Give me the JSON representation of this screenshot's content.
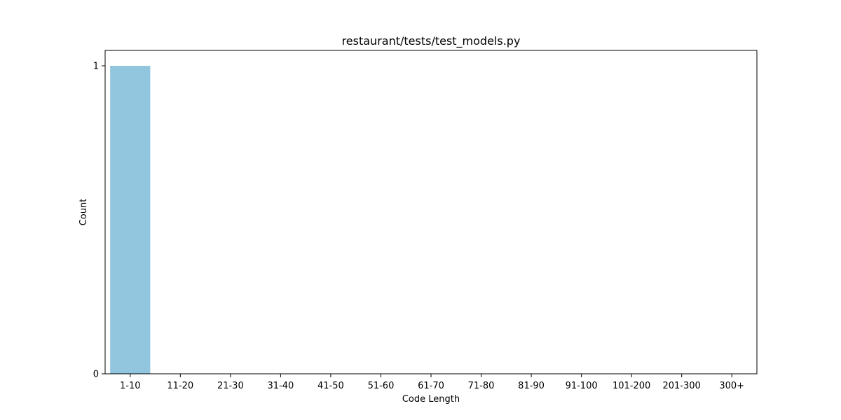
{
  "chart_data": {
    "type": "bar",
    "title": "restaurant/tests/test_models.py",
    "xlabel": "Code Length",
    "ylabel": "Count",
    "categories": [
      "1-10",
      "11-20",
      "21-30",
      "31-40",
      "41-50",
      "51-60",
      "61-70",
      "71-80",
      "81-90",
      "91-100",
      "101-200",
      "201-300",
      "300+"
    ],
    "values": [
      1,
      0,
      0,
      0,
      0,
      0,
      0,
      0,
      0,
      0,
      0,
      0,
      0
    ],
    "ylim": [
      0,
      1.05
    ],
    "yticks": [
      0,
      1
    ],
    "grid": false,
    "legend": "none",
    "bar_color": "#92c5de"
  }
}
